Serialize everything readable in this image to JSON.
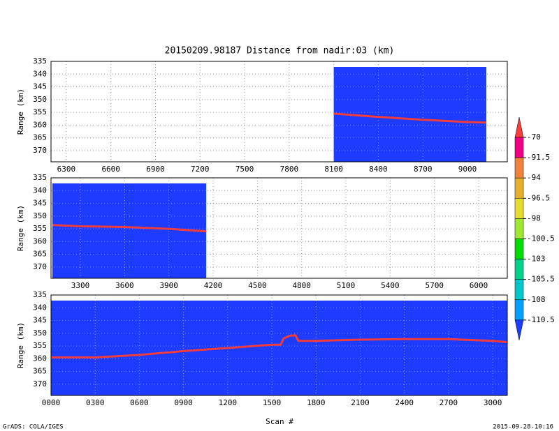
{
  "title": "20150209.98187    Distance from nadir:03 (km)",
  "xlabel": "Scan #",
  "credit": "GrADS: COLA/IGES",
  "timestamp": "2015-09-28-10:16",
  "chart_data": [
    {
      "type": "line",
      "ylabel": "Range (km)",
      "xlim": [
        6197,
        9268
      ],
      "ylim": [
        335,
        374.4
      ],
      "y_inverted": true,
      "grid": true,
      "xticks": [
        6300,
        6600,
        6900,
        7200,
        7500,
        7800,
        8100,
        8400,
        8700,
        9000
      ],
      "yticks": [
        335,
        340,
        345,
        350,
        355,
        360,
        365,
        370
      ],
      "fill_color": "#1e3cff",
      "series": [
        {
          "color": "#f03c3c",
          "x": [
            8100,
            8400,
            8700,
            9000,
            9127
          ],
          "values": [
            355.5,
            356.8,
            357.9,
            358.8,
            359
          ]
        }
      ]
    },
    {
      "type": "line",
      "ylabel": "Range (km)",
      "xlim": [
        3101,
        6194
      ],
      "ylim": [
        335,
        374.4
      ],
      "y_inverted": true,
      "grid": true,
      "xticks": [
        3300,
        3600,
        3900,
        4200,
        4500,
        4800,
        5100,
        5400,
        5700,
        6000
      ],
      "yticks": [
        335,
        340,
        345,
        350,
        355,
        360,
        365,
        370
      ],
      "fill_color": "#1e3cff",
      "series": [
        {
          "color": "#f03c3c",
          "x": [
            3110,
            3300,
            3600,
            3900,
            4153
          ],
          "values": [
            353.5,
            354,
            354.3,
            355,
            356
          ]
        }
      ]
    },
    {
      "type": "line",
      "ylabel": "Range (km)",
      "xlim": [
        0,
        3099
      ],
      "ylim": [
        335,
        374.4
      ],
      "y_inverted": true,
      "grid": true,
      "xticks": [
        {
          "value": 0,
          "label": "0000"
        },
        {
          "value": 300,
          "label": "0300"
        },
        {
          "value": 600,
          "label": "0600"
        },
        {
          "value": 900,
          "label": "0900"
        },
        1200,
        1500,
        1800,
        2100,
        2400,
        2700,
        3000
      ],
      "yticks": [
        335,
        340,
        345,
        350,
        355,
        360,
        365,
        370
      ],
      "fill_color": "#1e3cff",
      "series": [
        {
          "color": "#f03c3c",
          "x": [
            0,
            300,
            600,
            900,
            1200,
            1500,
            1560,
            1580,
            1620,
            1660,
            1680,
            1800,
            2100,
            2400,
            2700,
            3000,
            3099
          ],
          "values": [
            359.5,
            359.5,
            358.5,
            357,
            355.8,
            354.5,
            354.5,
            352,
            351,
            350.8,
            353,
            353,
            352.5,
            352.3,
            352.3,
            353,
            353.5
          ]
        }
      ]
    },
    {
      "type": "colorbar",
      "ticks": [
        -70,
        -91.5,
        -94,
        -96.5,
        -98,
        -100.5,
        -103,
        -105.5,
        -108,
        -110.5
      ],
      "colors": [
        "#fa3c3c",
        "#f00082",
        "#f0823c",
        "#e6af2d",
        "#e6dc32",
        "#a0e632",
        "#00dc00",
        "#00d28c",
        "#00c8c8",
        "#00a0ff",
        "#1e3cff"
      ]
    }
  ]
}
